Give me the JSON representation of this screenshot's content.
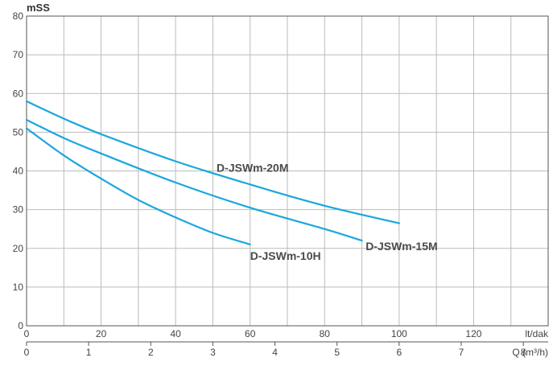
{
  "chart_data": {
    "type": "line",
    "ylabel": "mSS",
    "ylim": [
      0,
      80
    ],
    "yticks": [
      "0",
      "10",
      "20",
      "30",
      "40",
      "50",
      "60",
      "70",
      "80"
    ],
    "x_primary": {
      "unit": "lt/dak",
      "lim": [
        0,
        140
      ],
      "ticks": [
        "0",
        "20",
        "40",
        "60",
        "80",
        "100",
        "120"
      ]
    },
    "x_secondary": {
      "unit": "Q (m³/h)",
      "ticks": [
        "0",
        "1",
        "2",
        "3",
        "4",
        "5",
        "6",
        "7",
        "8"
      ]
    },
    "grid": true,
    "series_color": "#1aa7de",
    "series": [
      {
        "name": "D-JSWm-20M",
        "x": [
          0,
          10,
          20,
          40,
          60,
          80,
          100
        ],
        "y": [
          58,
          53.5,
          49.5,
          42.5,
          36.5,
          31,
          26.5
        ]
      },
      {
        "name": "D-JSWm-15M",
        "x": [
          0,
          10,
          20,
          40,
          60,
          80,
          90
        ],
        "y": [
          53.2,
          48.5,
          44.5,
          37,
          30.5,
          25,
          22
        ]
      },
      {
        "name": "D-JSWm-10H",
        "x": [
          0,
          10,
          20,
          30,
          40,
          50,
          60
        ],
        "y": [
          51,
          44,
          38,
          32.5,
          28,
          24,
          21
        ]
      }
    ]
  }
}
